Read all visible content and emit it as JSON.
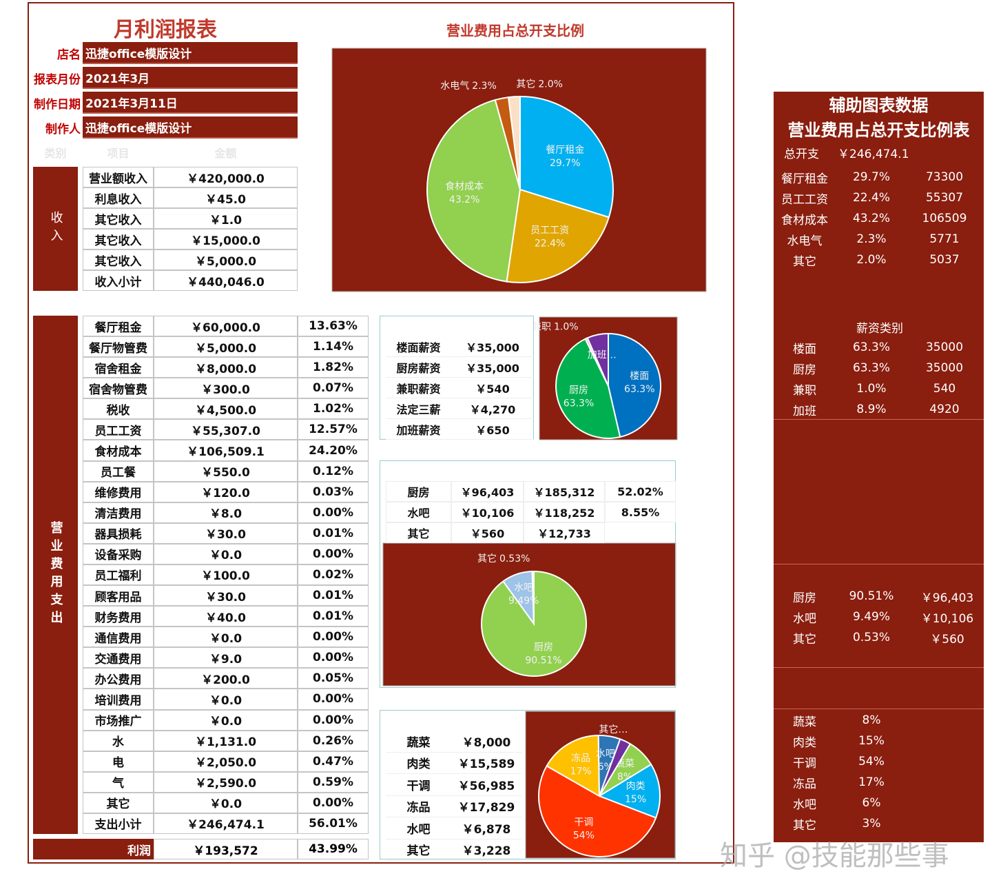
{
  "header": {
    "title": "月利润报表",
    "fields": [
      {
        "label": "店名",
        "value": "迅捷office模版设计"
      },
      {
        "label": "报表月份",
        "value": "2021年3月"
      },
      {
        "label": "制作日期",
        "value": "2021年3月11日"
      },
      {
        "label": "制作人",
        "value": "迅捷office模版设计"
      }
    ],
    "column_headers": [
      "类别",
      "项目",
      "金额"
    ]
  },
  "income": {
    "label": "收入",
    "rows": [
      [
        "营业额收入",
        "￥420,000.0"
      ],
      [
        "利息收入",
        "￥45.0"
      ],
      [
        "其它收入",
        "￥1.0"
      ],
      [
        "其它收入",
        "￥15,000.0"
      ],
      [
        "其它收入",
        "￥5,000.0"
      ],
      [
        "收入小计",
        "￥440,046.0"
      ]
    ]
  },
  "expense": {
    "label": "营业费用支出",
    "rows": [
      [
        "餐厅租金",
        "￥60,000.0",
        "13.63%"
      ],
      [
        "餐厅物管费",
        "￥5,000.0",
        "1.14%"
      ],
      [
        "宿舍租金",
        "￥8,000.0",
        "1.82%"
      ],
      [
        "宿舍物管费",
        "￥300.0",
        "0.07%"
      ],
      [
        "税收",
        "￥4,500.0",
        "1.02%"
      ],
      [
        "员工工资",
        "￥55,307.0",
        "12.57%"
      ],
      [
        "食材成本",
        "￥106,509.1",
        "24.20%"
      ],
      [
        "员工餐",
        "￥550.0",
        "0.12%"
      ],
      [
        "维修费用",
        "￥120.0",
        "0.03%"
      ],
      [
        "清洁费用",
        "￥8.0",
        "0.00%"
      ],
      [
        "器具损耗",
        "￥30.0",
        "0.01%"
      ],
      [
        "设备采购",
        "￥0.0",
        "0.00%"
      ],
      [
        "员工福利",
        "￥100.0",
        "0.02%"
      ],
      [
        "顾客用品",
        "￥30.0",
        "0.01%"
      ],
      [
        "财务费用",
        "￥40.0",
        "0.01%"
      ],
      [
        "通信费用",
        "￥0.0",
        "0.00%"
      ],
      [
        "交通费用",
        "￥9.0",
        "0.00%"
      ],
      [
        "办公费用",
        "￥200.0",
        "0.05%"
      ],
      [
        "培训费用",
        "￥0.0",
        "0.00%"
      ],
      [
        "市场推广",
        "￥0.0",
        "0.00%"
      ],
      [
        "水",
        "￥1,131.0",
        "0.26%"
      ],
      [
        "电",
        "￥2,050.0",
        "0.47%"
      ],
      [
        "气",
        "￥2,590.0",
        "0.59%"
      ],
      [
        "其它",
        "￥0.0",
        "0.00%"
      ],
      [
        "支出小计",
        "￥246,474.1",
        "56.01%"
      ]
    ],
    "profit": [
      "利润",
      "￥193,572",
      "43.99%"
    ]
  },
  "salary_table": {
    "rows": [
      [
        "楼面薪资",
        "￥35,000"
      ],
      [
        "厨房薪资",
        "￥35,000"
      ],
      [
        "兼职薪资",
        "￥540"
      ],
      [
        "法定三薪",
        "￥4,270"
      ],
      [
        "加班薪资",
        "￥650"
      ]
    ]
  },
  "dept_table": {
    "rows": [
      [
        "厨房",
        "￥96,403",
        "￥185,312",
        "52.02%"
      ],
      [
        "水吧",
        "￥10,106",
        "￥118,252",
        "8.55%"
      ],
      [
        "其它",
        "￥560",
        "￥12,733"
      ]
    ]
  },
  "food_table": {
    "rows": [
      [
        "蔬菜",
        "￥8,000"
      ],
      [
        "肉类",
        "￥15,589"
      ],
      [
        "干调",
        "￥56,985"
      ],
      [
        "冻品",
        "￥17,829"
      ],
      [
        "水吧",
        "￥6,878"
      ],
      [
        "其它",
        "￥3,228"
      ]
    ]
  },
  "side_panel": {
    "title": "辅助图表数据",
    "subtitle": "营业费用占总开支比例表",
    "total_label": "总开支",
    "total": "￥246,474.1",
    "expense_rows": [
      [
        "餐厅租金",
        "29.7%",
        "73300"
      ],
      [
        "员工工资",
        "22.4%",
        "55307"
      ],
      [
        "食材成本",
        "43.2%",
        "106509"
      ],
      [
        "水电气",
        "2.3%",
        "5771"
      ],
      [
        "其它",
        "2.0%",
        "5037"
      ]
    ],
    "salary_title": "薪资类别",
    "salary_rows": [
      [
        "楼面",
        "63.3%",
        "35000"
      ],
      [
        "厨房",
        "63.3%",
        "35000"
      ],
      [
        "兼职",
        "1.0%",
        "540"
      ],
      [
        "加班",
        "8.9%",
        "4920"
      ]
    ],
    "dept_rows": [
      [
        "厨房",
        "90.51%",
        "￥96,403"
      ],
      [
        "水吧",
        "9.49%",
        "￥10,106"
      ],
      [
        "其它",
        "0.53%",
        "￥560"
      ]
    ],
    "food_rows": [
      [
        "蔬菜",
        "8%"
      ],
      [
        "肉类",
        "15%"
      ],
      [
        "干调",
        "54%"
      ],
      [
        "冻品",
        "17%"
      ],
      [
        "水吧",
        "6%"
      ],
      [
        "其它",
        "3%"
      ]
    ]
  },
  "watermark": "知乎 @技能那些事",
  "chart_data": [
    {
      "type": "pie",
      "title": "营业费用占总开支比例",
      "categories": [
        "餐厅租金",
        "员工工资",
        "食材成本",
        "水电气",
        "其它"
      ],
      "values": [
        29.7,
        22.4,
        43.2,
        2.3,
        2.0
      ],
      "value_labels": [
        "29.7%",
        "22.4%",
        "43.2%",
        "2.3%",
        "2.0%"
      ],
      "colors": [
        "#00b0f0",
        "#e0a500",
        "#92d050",
        "#c55a11",
        "#fbe0c8"
      ]
    },
    {
      "type": "pie",
      "categories": [
        "楼面",
        "厨房",
        "兼职",
        "加班…"
      ],
      "values": [
        63.3,
        63.3,
        1.0,
        8.9
      ],
      "value_labels": [
        "63.3%",
        "63.3%",
        "1.0%",
        null
      ],
      "colors": [
        "#0070c0",
        "#00b050",
        "#f4b6c2",
        "#7030a0"
      ]
    },
    {
      "type": "pie",
      "categories": [
        "厨房",
        "水吧",
        "其它"
      ],
      "values": [
        90.51,
        9.49,
        0.53
      ],
      "value_labels": [
        "90.51%",
        "9.49%",
        "0.53%"
      ],
      "colors": [
        "#92d050",
        "#9dc3e6",
        "#ffffff"
      ]
    },
    {
      "type": "pie",
      "categories": [
        "蔬菜",
        "肉类",
        "干调",
        "冻品",
        "水吧",
        "其它…"
      ],
      "values": [
        8,
        15,
        54,
        17,
        6,
        3
      ],
      "value_labels": [
        "8%",
        "15%",
        "54%",
        "17%",
        "6%",
        null
      ],
      "colors": [
        "#92d050",
        "#00b0f0",
        "#ff3300",
        "#ffc000",
        "#2e75b6",
        "#7030a0"
      ]
    }
  ]
}
